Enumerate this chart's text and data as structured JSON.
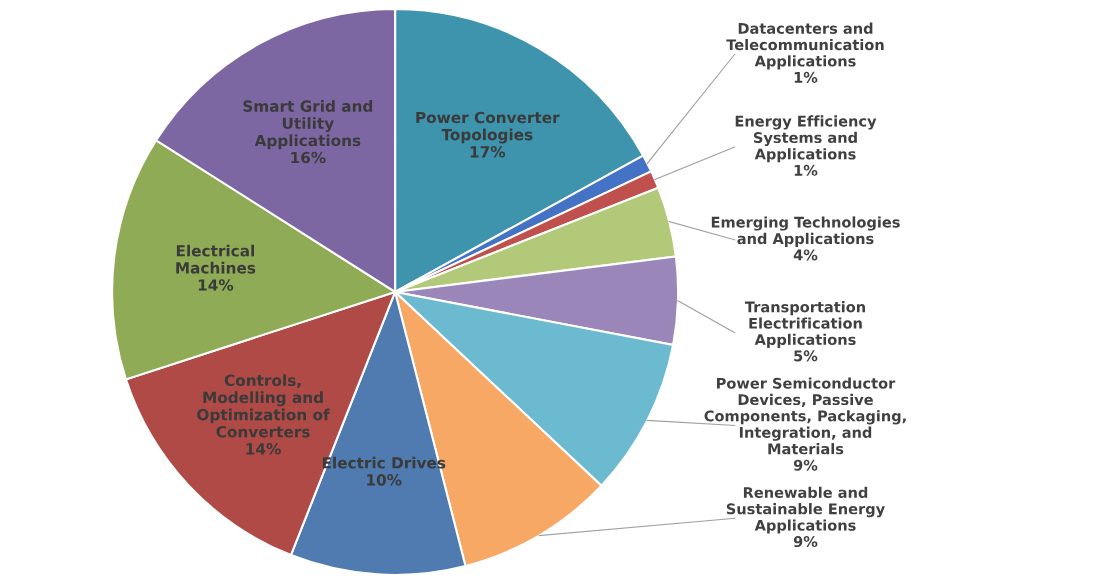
{
  "chart_data": {
    "type": "pie",
    "categories": [
      "Power Converter Topologies",
      "Datacenters and Telecommunication Applications",
      "Energy Efficiency Systems and Applications",
      "Emerging Technologies and Applications",
      "Transportation Electrification Applications",
      "Power Semiconductor Devices, Passive Components, Packaging, Integration, and Materials",
      "Renewable and Sustainable Energy Applications",
      "Electric Drives",
      "Controls, Modelling and Optimization of Converters",
      "Electrical Machines",
      "Smart Grid and Utility Applications"
    ],
    "values": [
      17,
      1,
      1,
      4,
      5,
      9,
      9,
      10,
      14,
      14,
      16
    ],
    "colors": [
      "#3e93ad",
      "#4472c4",
      "#c0504d",
      "#b3c97a",
      "#9a86b8",
      "#6cbad0",
      "#f8a865",
      "#4f7bb0",
      "#b04a46",
      "#8fab55",
      "#7d67a3"
    ],
    "value_labels": [
      "17%",
      "1%",
      "1%",
      "4%",
      "5%",
      "9%",
      "9%",
      "10%",
      "14%",
      "14%",
      "16%"
    ]
  }
}
